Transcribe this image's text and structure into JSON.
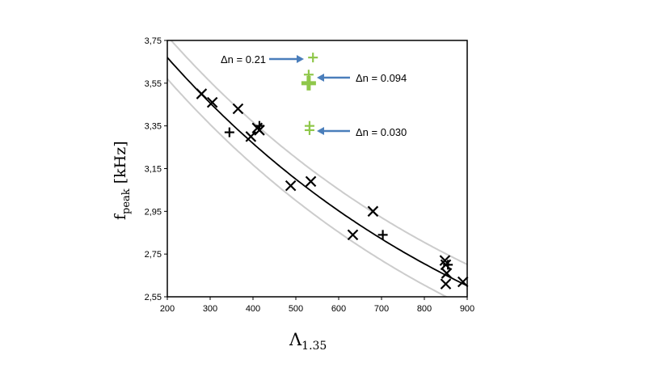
{
  "chart_data": {
    "type": "scatter",
    "xlabel": "Λ",
    "xlabel_sub": "1.35",
    "ylabel": "f",
    "ylabel_sub": "peak",
    "ylabel_unit": "[kHz]",
    "xlim": [
      200,
      900
    ],
    "ylim": [
      2.55,
      3.75
    ],
    "x_ticks": [
      "200",
      "300",
      "400",
      "500",
      "600",
      "700",
      "800",
      "900"
    ],
    "y_ticks": [
      "2,55",
      "2,75",
      "2,95",
      "3,15",
      "3,35",
      "3,55",
      "3,75"
    ],
    "grid": false,
    "colors": {
      "data": "#000000",
      "fit": "#000000",
      "band": "#cccccc",
      "green": "#8fc74a",
      "arrow": "#4a7ebb"
    },
    "series": [
      {
        "marker": "x",
        "points": [
          [
            280,
            3.5
          ],
          [
            305,
            3.46
          ],
          [
            365,
            3.43
          ],
          [
            395,
            3.3
          ],
          [
            410,
            3.34
          ],
          [
            415,
            3.33
          ],
          [
            488,
            3.07
          ],
          [
            535,
            3.09
          ],
          [
            633,
            2.84
          ],
          [
            680,
            2.95
          ],
          [
            848,
            2.72
          ],
          [
            850,
            2.7
          ],
          [
            852,
            2.66
          ],
          [
            850,
            2.61
          ],
          [
            890,
            2.62
          ]
        ]
      },
      {
        "marker": "+",
        "points": [
          [
            345,
            3.32
          ],
          [
            415,
            3.35
          ],
          [
            703,
            2.84
          ],
          [
            855,
            2.7
          ]
        ]
      },
      {
        "marker": "+",
        "color": "green",
        "points": [
          [
            540,
            3.67
          ],
          [
            530,
            3.59
          ],
          [
            530,
            3.55
          ],
          [
            532,
            3.35
          ],
          [
            532,
            3.33
          ]
        ]
      }
    ],
    "fit_curve": {
      "x": [
        200,
        900
      ],
      "x0": 200,
      "y0": 3.67,
      "decay_per_100": 0.886,
      "floor": 1.8
    },
    "band_offset": 0.1,
    "annotations": [
      "Δn = 0.21",
      "Δn = 0.094",
      "Δn = 0.030"
    ]
  }
}
